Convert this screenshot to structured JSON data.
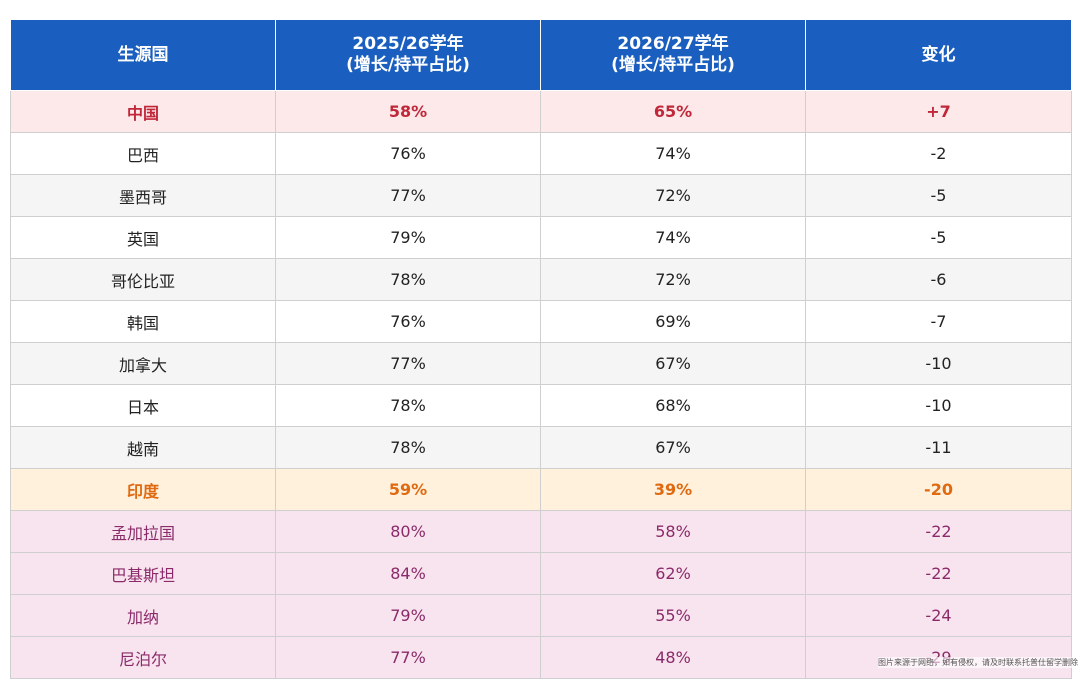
{
  "chart_data": {
    "type": "table",
    "columns": [
      {
        "label": "生源国"
      },
      {
        "label": "2025/26学年",
        "sub": "(增长/持平占比)"
      },
      {
        "label": "2026/27学年",
        "sub": "(增长/持平占比)"
      },
      {
        "label": "变化"
      }
    ],
    "rows": [
      {
        "country": "中国",
        "y2025": "58%",
        "y2026": "65%",
        "change": "+7",
        "style": "china"
      },
      {
        "country": "巴西",
        "y2025": "76%",
        "y2026": "74%",
        "change": "-2",
        "style": "white"
      },
      {
        "country": "墨西哥",
        "y2025": "77%",
        "y2026": "72%",
        "change": "-5",
        "style": "grey"
      },
      {
        "country": "英国",
        "y2025": "79%",
        "y2026": "74%",
        "change": "-5",
        "style": "white"
      },
      {
        "country": "哥伦比亚",
        "y2025": "78%",
        "y2026": "72%",
        "change": "-6",
        "style": "grey"
      },
      {
        "country": "韩国",
        "y2025": "76%",
        "y2026": "69%",
        "change": "-7",
        "style": "white"
      },
      {
        "country": "加拿大",
        "y2025": "77%",
        "y2026": "67%",
        "change": "-10",
        "style": "grey"
      },
      {
        "country": "日本",
        "y2025": "78%",
        "y2026": "68%",
        "change": "-10",
        "style": "white"
      },
      {
        "country": "越南",
        "y2025": "78%",
        "y2026": "67%",
        "change": "-11",
        "style": "grey"
      },
      {
        "country": "印度",
        "y2025": "59%",
        "y2026": "39%",
        "change": "-20",
        "style": "india"
      },
      {
        "country": "孟加拉国",
        "y2025": "80%",
        "y2026": "58%",
        "change": "-22",
        "style": "pink"
      },
      {
        "country": "巴基斯坦",
        "y2025": "84%",
        "y2026": "62%",
        "change": "-22",
        "style": "pink"
      },
      {
        "country": "加纳",
        "y2025": "79%",
        "y2026": "55%",
        "change": "-24",
        "style": "pink"
      },
      {
        "country": "尼泊尔",
        "y2025": "77%",
        "y2026": "48%",
        "change": "-29",
        "style": "pink"
      }
    ]
  },
  "colors": {
    "header": "#1a5fbf",
    "china_text": "#c0283a",
    "india_text": "#e06a12",
    "pink_text": "#8b2a6a"
  },
  "watermark": "图片来源于网络，如有侵权，请及时联系托普仕留学删除"
}
